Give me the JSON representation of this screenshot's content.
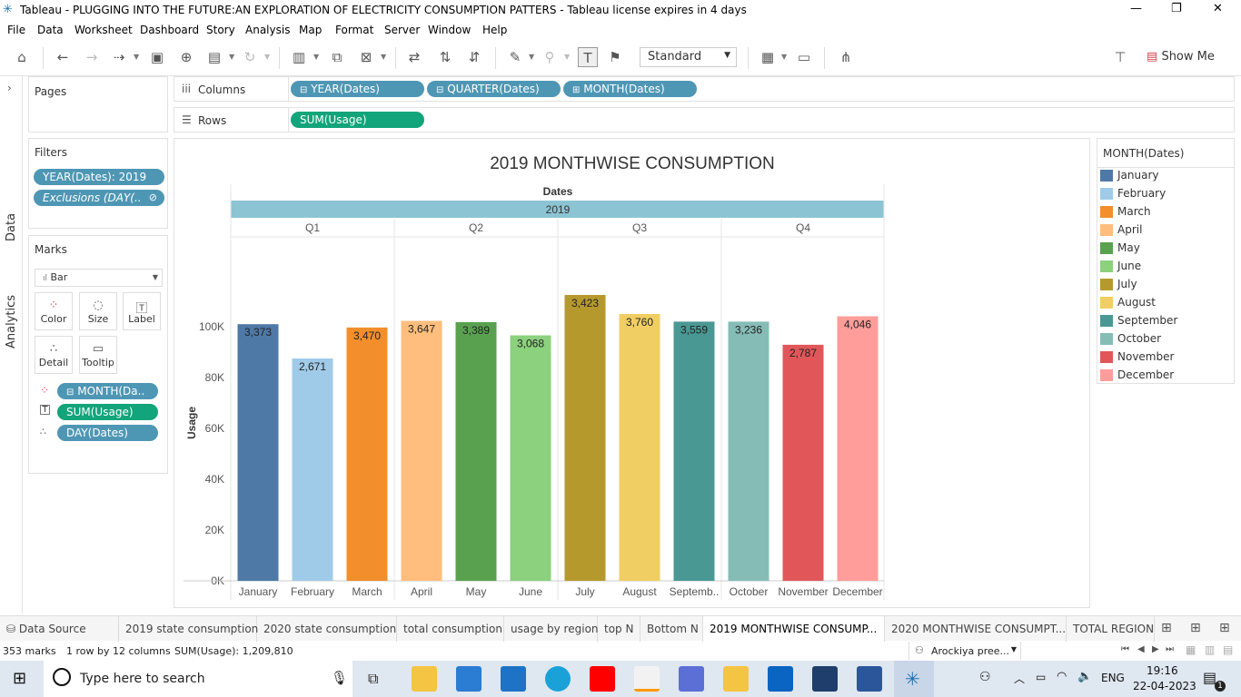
{
  "window": {
    "title": "Tableau - PLUGGING INTO THE FUTURE:AN EXPLORATION OF ELECTRICITY CONSUMPTION PATTERS - Tableau license expires in 4 days"
  },
  "menu": [
    "File",
    "Data",
    "Worksheet",
    "Dashboard",
    "Story",
    "Analysis",
    "Map",
    "Format",
    "Server",
    "Window",
    "Help"
  ],
  "toolbar": {
    "fit_value": "Standard",
    "show_me": "Show Me"
  },
  "side_tabs": {
    "data": "Data",
    "analytics": "Analytics"
  },
  "pages": {
    "title": "Pages"
  },
  "filters": {
    "title": "Filters",
    "items": [
      "YEAR(Dates): 2019",
      "Exclusions (DAY(.."
    ]
  },
  "marks": {
    "title": "Marks",
    "type": "Bar",
    "cards": [
      "Color",
      "Size",
      "Label",
      "Detail",
      "Tooltip"
    ],
    "fields": [
      "MONTH(Da..",
      "SUM(Usage)",
      "DAY(Dates)"
    ]
  },
  "shelves": {
    "columns_label": "Columns",
    "columns": [
      "YEAR(Dates)",
      "QUARTER(Dates)",
      "MONTH(Dates)"
    ],
    "rows_label": "Rows",
    "rows": [
      "SUM(Usage)"
    ]
  },
  "legend": {
    "title": "MONTH(Dates)"
  },
  "colors": {
    "January": "#4e79a7",
    "February": "#a0cbe8",
    "March": "#f28e2b",
    "April": "#ffbe7d",
    "May": "#59a14f",
    "June": "#8cd17d",
    "July": "#b6992d",
    "August": "#f1ce63",
    "September": "#499894",
    "October": "#86bcb6",
    "November": "#e15759",
    "December": "#ff9d9a"
  },
  "chart_data": {
    "type": "bar",
    "title": "2019 MONTHWISE CONSUMPTION",
    "header_field": "Dates",
    "year": "2019",
    "quarters": [
      "Q1",
      "Q2",
      "Q3",
      "Q4"
    ],
    "categories": [
      "January",
      "February",
      "March",
      "April",
      "May",
      "June",
      "July",
      "August",
      "Septemb..",
      "October",
      "November",
      "December"
    ],
    "values": [
      101000,
      87500,
      99700,
      102300,
      101800,
      96600,
      112500,
      105000,
      102000,
      102000,
      92900,
      104100
    ],
    "labels": [
      "3,373",
      "2,671",
      "3,470",
      "3,647",
      "3,389",
      "3,068",
      "3,423",
      "3,760",
      "3,559",
      "3,236",
      "2,787",
      "4,046"
    ],
    "ylabel": "Usage",
    "yticks": [
      "100K",
      "80K",
      "60K",
      "40K",
      "20K",
      "0K"
    ],
    "ylim": [
      0,
      115000
    ]
  },
  "sheet_tabs": [
    "Data Source",
    "2019 state consumption",
    "2020 state consumption",
    "total consumption",
    "usage by region",
    "top N",
    "Bottom N",
    "2019 MONTHWISE CONSUMP...",
    "2020 MONTHWISE CONSUMPT...",
    "TOTAL REGION"
  ],
  "active_tab": "2019 MONTHWISE CONSUMP...",
  "status": {
    "marks": "353 marks",
    "rows": "1 row by 12 columns",
    "sum": "SUM(Usage): 1,209,810",
    "user": "Arockiya pree..."
  },
  "taskbar": {
    "search_placeholder": "Type here to search",
    "lang": "ENG",
    "time": "19:16",
    "date": "22-04-2023",
    "notif": "1"
  }
}
